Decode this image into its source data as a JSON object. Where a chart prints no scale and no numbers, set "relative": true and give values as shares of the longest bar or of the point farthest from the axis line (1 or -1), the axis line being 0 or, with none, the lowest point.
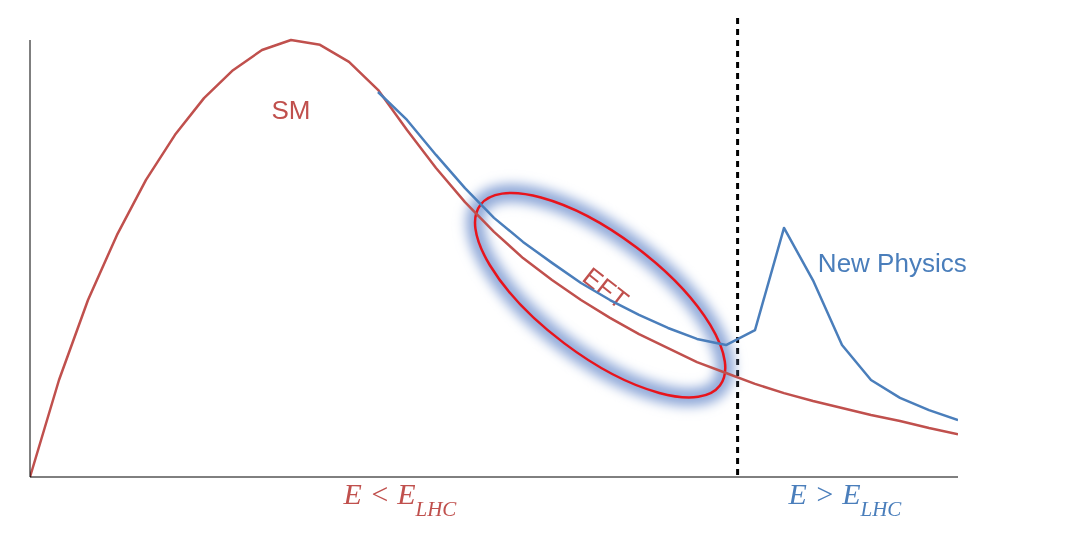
{
  "chart_data": {
    "type": "line",
    "relative": true,
    "categories": [
      null,
      null,
      null,
      null,
      null,
      null,
      null,
      null,
      null,
      null,
      null,
      null,
      null,
      null,
      null,
      null,
      null,
      null,
      null,
      null,
      null,
      null,
      null,
      null,
      null,
      null,
      null,
      null,
      null,
      null,
      null,
      null,
      null
    ],
    "marker": "none",
    "line_style": "solid",
    "series": [
      {
        "name": "SM",
        "color": "#c0504d",
        "values": [
          0,
          0.222,
          0.405,
          0.554,
          0.68,
          0.783,
          0.867,
          0.931,
          0.977,
          1,
          0.989,
          0.95,
          0.886,
          0.794,
          0.707,
          0.629,
          0.561,
          0.501,
          0.451,
          0.405,
          0.364,
          0.327,
          0.295,
          0.263,
          0.238,
          0.213,
          0.192,
          0.174,
          0.158,
          0.142,
          0.128,
          0.112,
          0.098
        ]
      },
      {
        "name": "New Physics",
        "color": "#4a7ebb",
        "values": [
          null,
          null,
          null,
          null,
          null,
          null,
          null,
          null,
          null,
          null,
          null,
          null,
          0.881,
          0.817,
          0.737,
          0.661,
          0.593,
          0.538,
          0.49,
          0.444,
          0.405,
          0.371,
          0.341,
          0.316,
          0.302,
          0.336,
          0.57,
          0.45,
          0.302,
          0.222,
          0.181,
          0.153,
          0.13
        ]
      }
    ],
    "annotations": [
      "EFT",
      "E < E$_{LHC}$",
      "E > E$_{LHC}$"
    ]
  }
}
